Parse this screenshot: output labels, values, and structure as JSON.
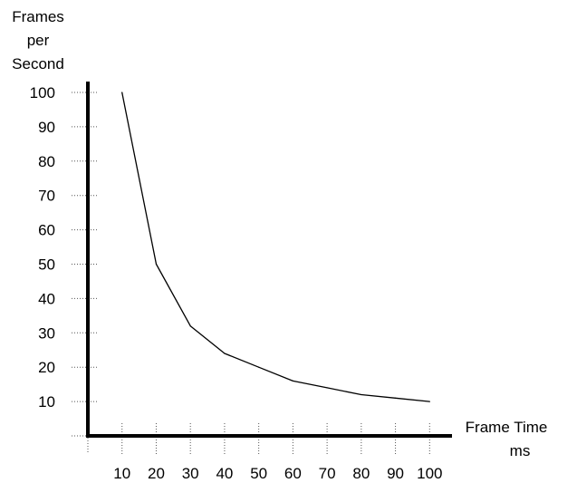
{
  "chart_data": {
    "type": "line",
    "title": "",
    "ylabel_lines": [
      "Frames",
      "per",
      "Second"
    ],
    "xlabel_lines": [
      "Frame Time",
      "ms"
    ],
    "x_ticks": [
      10,
      20,
      30,
      40,
      50,
      60,
      70,
      80,
      90,
      100
    ],
    "y_ticks": [
      10,
      20,
      30,
      40,
      50,
      60,
      70,
      80,
      90,
      100
    ],
    "xlim": [
      0,
      100
    ],
    "ylim": [
      0,
      100
    ],
    "grid": false,
    "legend": "none",
    "series": [
      {
        "x": [
          10,
          20,
          30,
          40,
          50,
          60,
          70,
          80,
          90,
          100
        ],
        "y": [
          100,
          50,
          32,
          24,
          20,
          16,
          14,
          12,
          11,
          10
        ],
        "color": "#000000"
      }
    ],
    "colors": {
      "axis": "#000000",
      "tick_dots": "#555555",
      "line": "#000000"
    }
  }
}
